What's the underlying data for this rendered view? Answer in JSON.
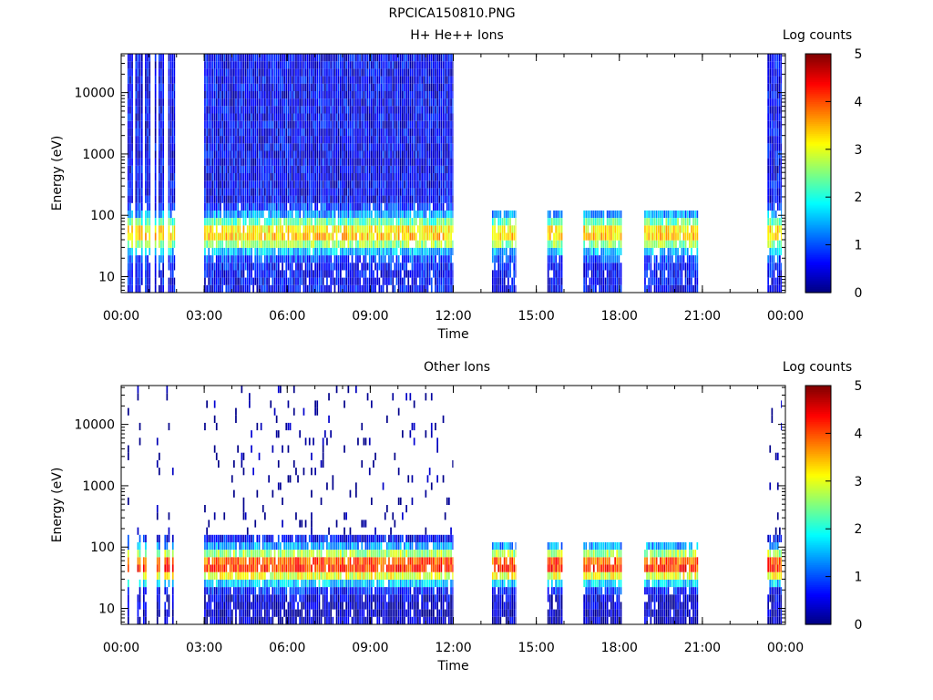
{
  "figure_title": "RPCICA150810.PNG",
  "colorbar_ticks": [
    "0",
    "1",
    "2",
    "3",
    "4",
    "5"
  ],
  "chart_data": [
    {
      "type": "heatmap",
      "title": "H+ He++ Ions",
      "xlabel": "Time",
      "ylabel": "Energy (eV)",
      "colorbar_label": "Log counts",
      "x_tick_labels": [
        "00:00",
        "03:00",
        "06:00",
        "09:00",
        "12:00",
        "15:00",
        "18:00",
        "21:00",
        "00:00"
      ],
      "y_tick_labels": [
        "10",
        "100",
        "1000",
        "10000"
      ],
      "y_scale": "log",
      "ylim": [
        5.5,
        43000
      ],
      "xlim_hours": [
        0,
        24
      ],
      "color_range": [
        0,
        5
      ],
      "coverage_segments": [
        {
          "start": 0.23,
          "end": 1.95,
          "mode": "sparse_stripes"
        },
        {
          "start": 3.0,
          "end": 12.0,
          "mode": "continuous"
        },
        {
          "start": 13.4,
          "end": 14.25,
          "mode": "low_energy"
        },
        {
          "start": 15.4,
          "end": 15.95,
          "mode": "low_energy"
        },
        {
          "start": 16.7,
          "end": 18.1,
          "mode": "low_energy"
        },
        {
          "start": 18.9,
          "end": 20.85,
          "mode": "low_energy"
        },
        {
          "start": 23.35,
          "end": 23.85,
          "mode": "continuous"
        }
      ],
      "profile": {
        "peak_energy_eV": 50,
        "peak_log_counts": 3.4,
        "background_log_counts": 0.6,
        "high_energy_background": 0.55,
        "noise_fraction": 0.06
      }
    },
    {
      "type": "heatmap",
      "title": "Other Ions",
      "xlabel": "Time",
      "ylabel": "Energy (eV)",
      "colorbar_label": "Log counts",
      "x_tick_labels": [
        "00:00",
        "03:00",
        "06:00",
        "09:00",
        "12:00",
        "15:00",
        "18:00",
        "21:00",
        "00:00"
      ],
      "y_tick_labels": [
        "10",
        "100",
        "1000",
        "10000"
      ],
      "y_scale": "log",
      "ylim": [
        5.5,
        43000
      ],
      "xlim_hours": [
        0,
        24
      ],
      "color_range": [
        0,
        5
      ],
      "coverage_segments": [
        {
          "start": 0.23,
          "end": 1.95,
          "mode": "sparse_stripes"
        },
        {
          "start": 3.0,
          "end": 12.0,
          "mode": "continuous"
        },
        {
          "start": 13.4,
          "end": 14.25,
          "mode": "low_energy"
        },
        {
          "start": 15.4,
          "end": 15.95,
          "mode": "low_energy"
        },
        {
          "start": 16.7,
          "end": 18.1,
          "mode": "low_energy"
        },
        {
          "start": 18.9,
          "end": 20.85,
          "mode": "low_energy"
        },
        {
          "start": 23.35,
          "end": 23.85,
          "mode": "continuous"
        }
      ],
      "profile": {
        "peak_energy_eV": 50,
        "peak_log_counts": 4.2,
        "background_log_counts": 0.3,
        "high_energy_background": 0.0,
        "noise_fraction": 0.03
      }
    }
  ]
}
